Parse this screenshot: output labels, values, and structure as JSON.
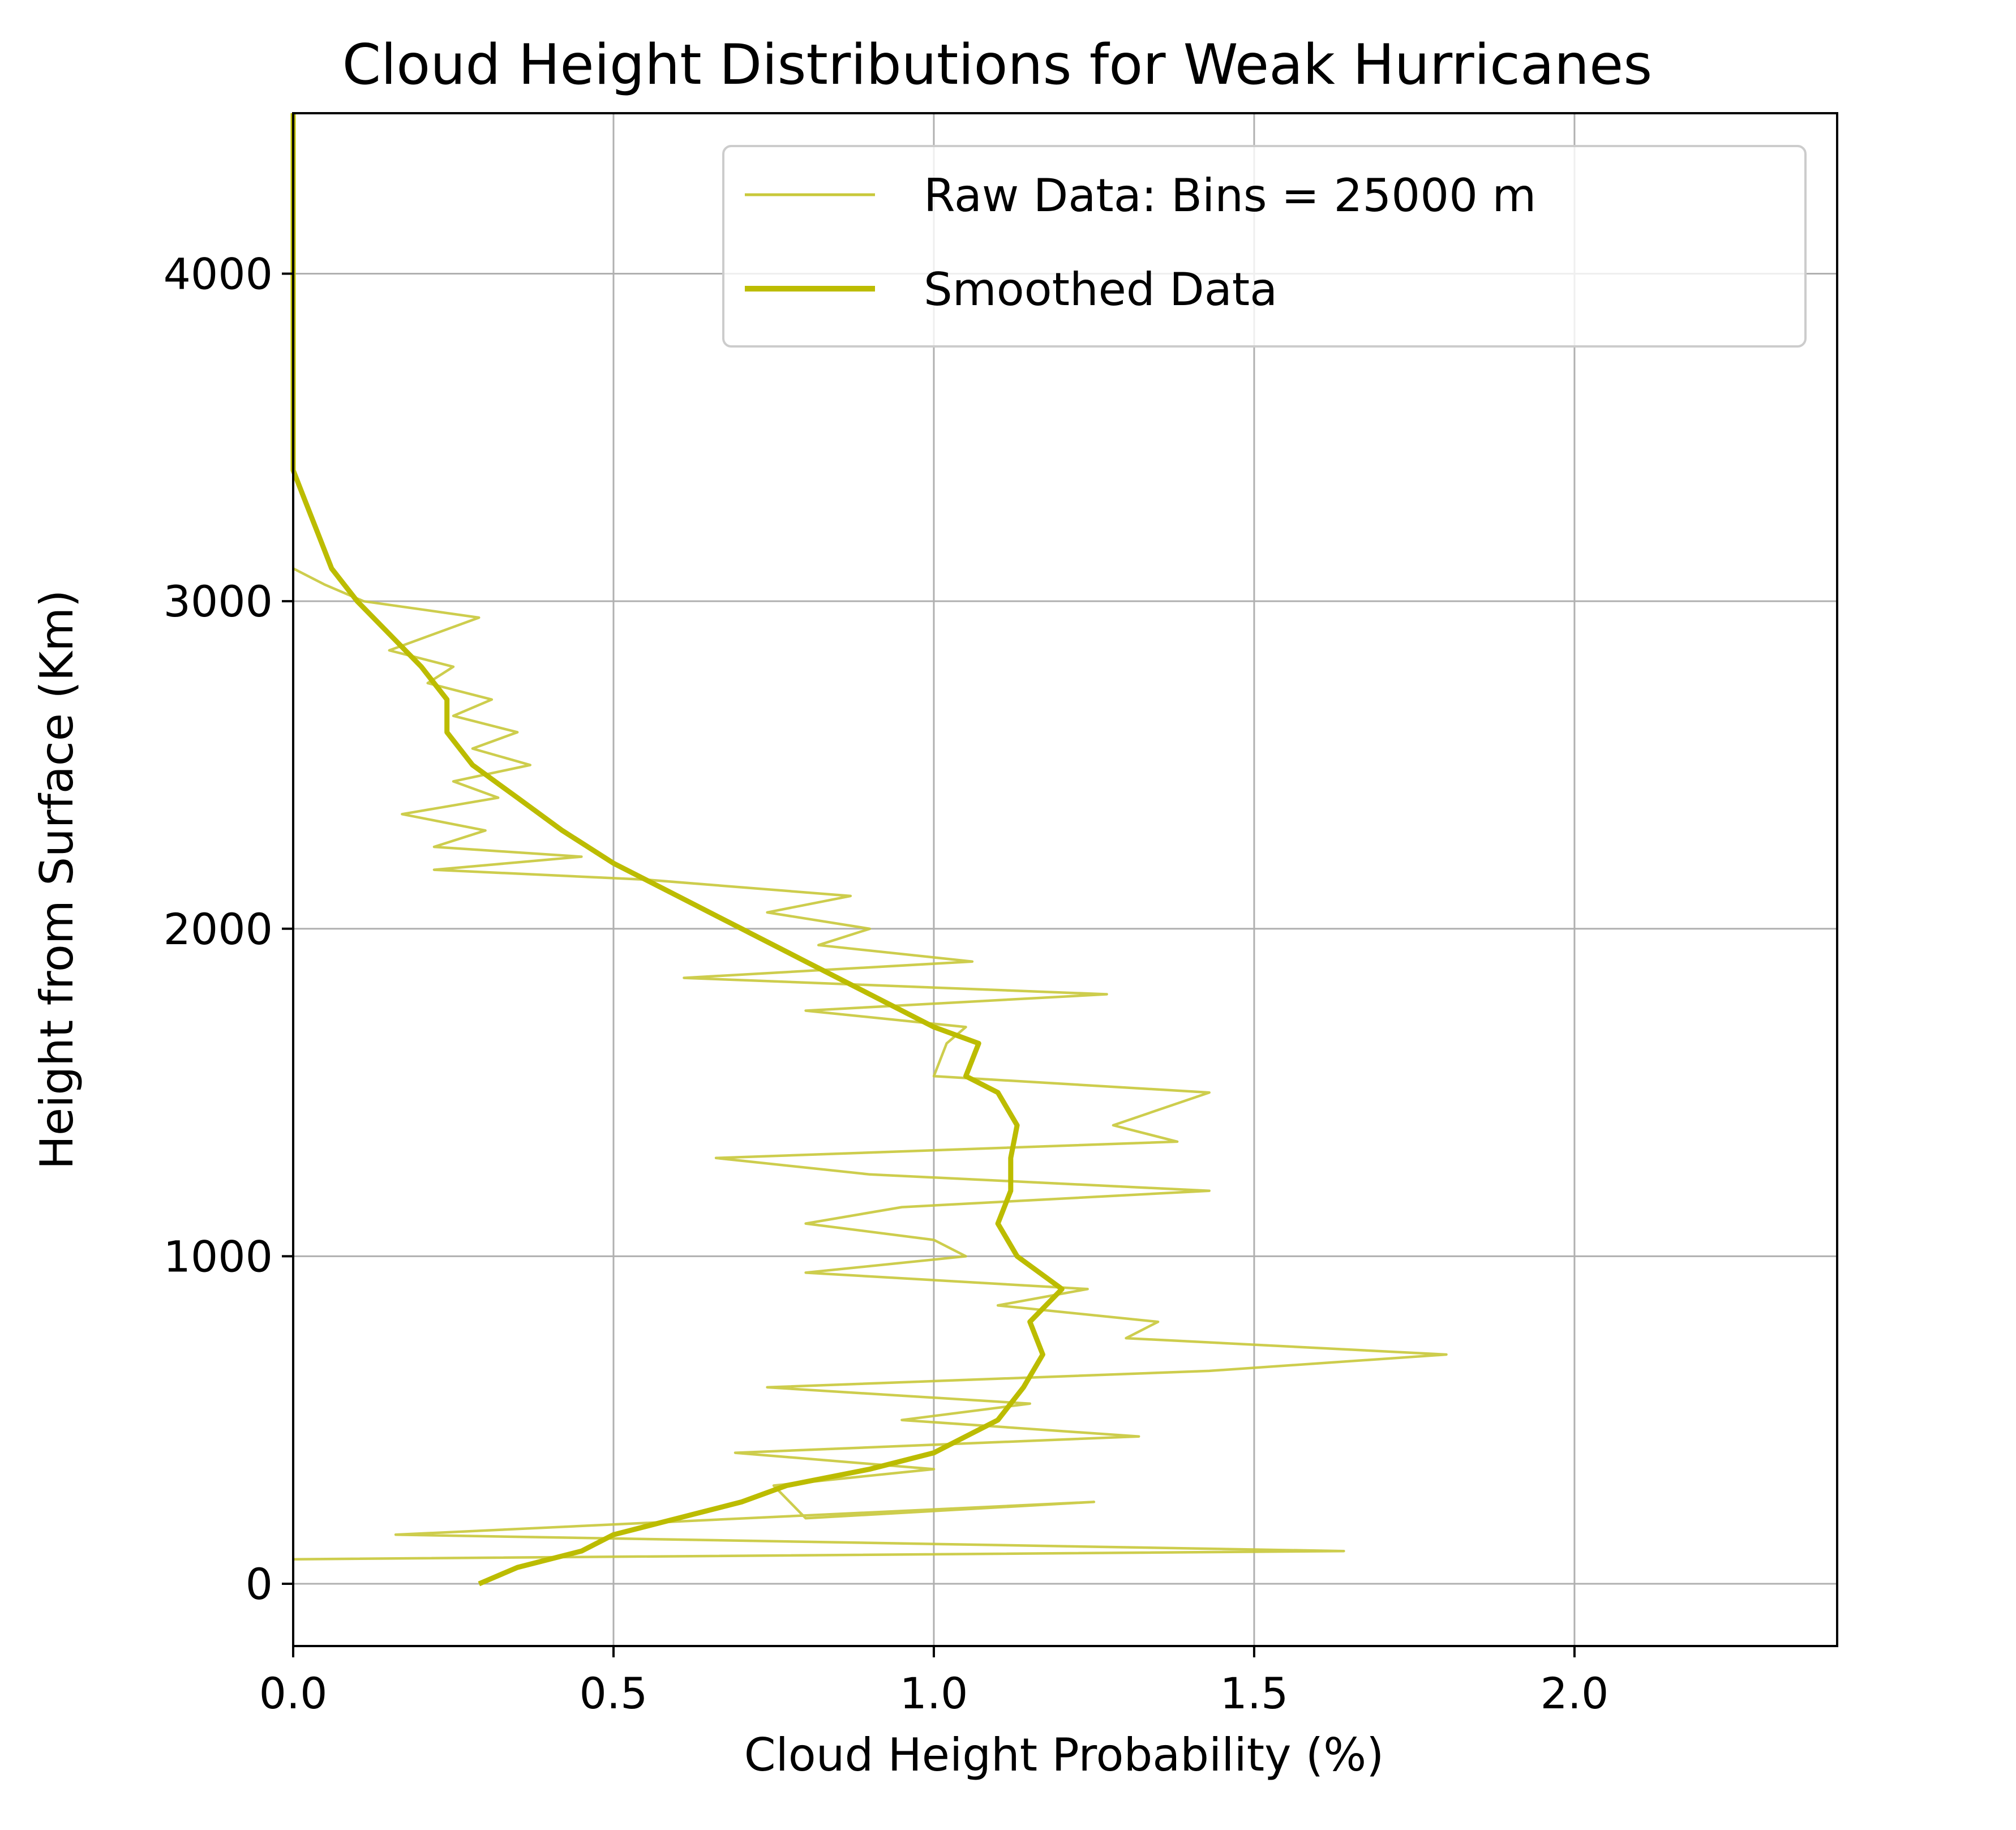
{
  "chart_data": {
    "type": "line",
    "title": "Cloud Height Distributions for Weak Hurricanes",
    "xlabel": "Cloud Height Probability (%)",
    "ylabel": "Height from Surface (Km)",
    "xlim": [
      0.0,
      2.41
    ],
    "ylim": [
      -190,
      4490
    ],
    "xticks": [
      {
        "value": 0.0,
        "label": "0.0"
      },
      {
        "value": 0.5,
        "label": "0.5"
      },
      {
        "value": 1.0,
        "label": "1.0"
      },
      {
        "value": 1.5,
        "label": "1.5"
      },
      {
        "value": 2.0,
        "label": "2.0"
      }
    ],
    "yticks": [
      {
        "value": 0,
        "label": "0"
      },
      {
        "value": 1000,
        "label": "1000"
      },
      {
        "value": 2000,
        "label": "2000"
      },
      {
        "value": 3000,
        "label": "3000"
      },
      {
        "value": 4000,
        "label": "4000"
      }
    ],
    "grid": true,
    "legend_position": "top-right",
    "series": [
      {
        "name": "Raw Data: Bins = 25000 m",
        "color": "#c8c83a",
        "style": "thin",
        "points": [
          [
            0.0,
            75
          ],
          [
            1.64,
            100
          ],
          [
            0.16,
            150
          ],
          [
            1.25,
            250
          ],
          [
            0.8,
            200
          ],
          [
            0.75,
            300
          ],
          [
            1.0,
            350
          ],
          [
            0.69,
            400
          ],
          [
            1.32,
            450
          ],
          [
            0.95,
            500
          ],
          [
            1.15,
            550
          ],
          [
            0.74,
            600
          ],
          [
            1.43,
            650
          ],
          [
            1.8,
            700
          ],
          [
            1.3,
            750
          ],
          [
            1.35,
            800
          ],
          [
            1.1,
            850
          ],
          [
            1.24,
            900
          ],
          [
            0.8,
            950
          ],
          [
            1.05,
            1000
          ],
          [
            1.0,
            1050
          ],
          [
            0.8,
            1100
          ],
          [
            0.95,
            1150
          ],
          [
            1.43,
            1200
          ],
          [
            0.9,
            1250
          ],
          [
            0.66,
            1300
          ],
          [
            1.38,
            1350
          ],
          [
            1.28,
            1400
          ],
          [
            1.43,
            1500
          ],
          [
            1.0,
            1550
          ],
          [
            1.02,
            1650
          ],
          [
            1.05,
            1700
          ],
          [
            0.8,
            1750
          ],
          [
            1.27,
            1800
          ],
          [
            0.61,
            1850
          ],
          [
            1.06,
            1900
          ],
          [
            0.82,
            1950
          ],
          [
            0.9,
            2000
          ],
          [
            0.74,
            2050
          ],
          [
            0.87,
            2100
          ],
          [
            0.55,
            2150
          ],
          [
            0.22,
            2180
          ],
          [
            0.45,
            2220
          ],
          [
            0.22,
            2250
          ],
          [
            0.3,
            2300
          ],
          [
            0.17,
            2350
          ],
          [
            0.32,
            2400
          ],
          [
            0.25,
            2450
          ],
          [
            0.37,
            2500
          ],
          [
            0.28,
            2550
          ],
          [
            0.35,
            2600
          ],
          [
            0.25,
            2650
          ],
          [
            0.31,
            2700
          ],
          [
            0.21,
            2750
          ],
          [
            0.25,
            2800
          ],
          [
            0.15,
            2850
          ],
          [
            0.29,
            2950
          ],
          [
            0.11,
            3000
          ],
          [
            0.05,
            3050
          ],
          [
            0.0,
            3100
          ]
        ]
      },
      {
        "name": "Smoothed Data",
        "color": "#bcbc00",
        "style": "thick",
        "points": [
          [
            0.29,
            0
          ],
          [
            0.35,
            50
          ],
          [
            0.45,
            100
          ],
          [
            0.5,
            150
          ],
          [
            0.6,
            200
          ],
          [
            0.7,
            250
          ],
          [
            0.77,
            300
          ],
          [
            0.9,
            350
          ],
          [
            1.0,
            400
          ],
          [
            1.1,
            500
          ],
          [
            1.14,
            600
          ],
          [
            1.17,
            700
          ],
          [
            1.15,
            800
          ],
          [
            1.2,
            900
          ],
          [
            1.13,
            1000
          ],
          [
            1.1,
            1100
          ],
          [
            1.12,
            1200
          ],
          [
            1.12,
            1300
          ],
          [
            1.13,
            1400
          ],
          [
            1.1,
            1500
          ],
          [
            1.05,
            1550
          ],
          [
            1.07,
            1650
          ],
          [
            1.0,
            1700
          ],
          [
            0.9,
            1800
          ],
          [
            0.8,
            1900
          ],
          [
            0.7,
            2000
          ],
          [
            0.6,
            2100
          ],
          [
            0.5,
            2200
          ],
          [
            0.42,
            2300
          ],
          [
            0.35,
            2400
          ],
          [
            0.28,
            2500
          ],
          [
            0.24,
            2600
          ],
          [
            0.24,
            2700
          ],
          [
            0.2,
            2800
          ],
          [
            0.15,
            2900
          ],
          [
            0.1,
            3000
          ],
          [
            0.06,
            3100
          ],
          [
            0.04,
            3200
          ],
          [
            0.02,
            3300
          ],
          [
            0.0,
            3400
          ],
          [
            0.0,
            4490
          ]
        ]
      }
    ]
  }
}
